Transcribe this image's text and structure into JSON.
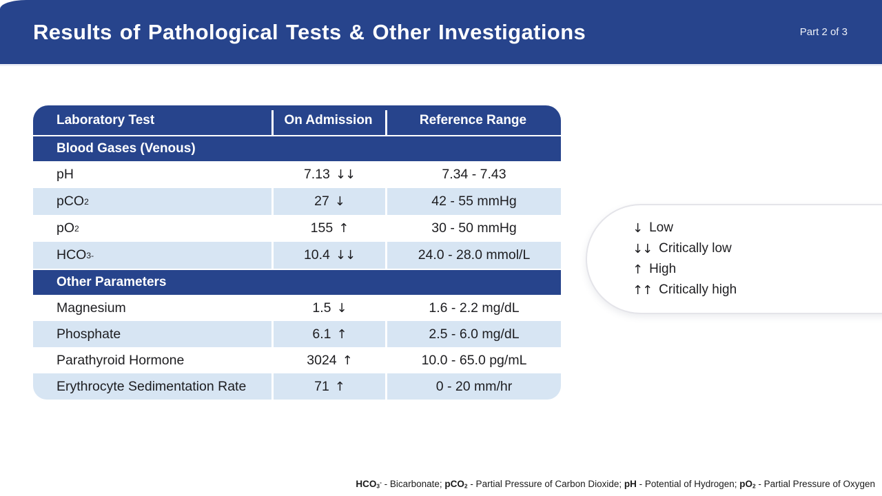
{
  "colors": {
    "banner_blue": "#27448c",
    "row_light_blue": "#d7e5f3",
    "text_dark": "#1d1d20",
    "white": "#ffffff"
  },
  "header": {
    "title": "Results of Pathological Tests & Other Investigations",
    "part_label": "Part 2 of 3"
  },
  "table": {
    "columns": [
      "Laboratory Test",
      "On Admission",
      "Reference Range"
    ],
    "sections": [
      {
        "title": "Blood Gases (Venous)",
        "rows": [
          {
            "name": "pH",
            "name_sub": "",
            "name_sup": "",
            "value": "7.13",
            "flag": "↓↓",
            "range": "7.34 - 7.43"
          },
          {
            "name": "pCO",
            "name_sub": "2",
            "name_sup": "",
            "value": "27",
            "flag": "↓",
            "range": "42 - 55 mmHg"
          },
          {
            "name": "pO",
            "name_sub": "2",
            "name_sup": "",
            "value": "155",
            "flag": "↑",
            "range": "30 - 50 mmHg"
          },
          {
            "name": "HCO",
            "name_sub": "3",
            "name_sup": "-",
            "value": "10.4",
            "flag": "↓↓",
            "range": "24.0 - 28.0 mmol/L"
          }
        ]
      },
      {
        "title": "Other Parameters",
        "rows": [
          {
            "name": "Magnesium",
            "name_sub": "",
            "name_sup": "",
            "value": "1.5",
            "flag": "↓",
            "range": "1.6 - 2.2 mg/dL"
          },
          {
            "name": "Phosphate",
            "name_sub": "",
            "name_sup": "",
            "value": "6.1",
            "flag": "↑",
            "range": "2.5 - 6.0 mg/dL"
          },
          {
            "name": "Parathyroid Hormone",
            "name_sub": "",
            "name_sup": "",
            "value": "3024",
            "flag": "↑",
            "range": "10.0 - 65.0 pg/mL"
          },
          {
            "name": "Erythrocyte Sedimentation Rate",
            "name_sub": "",
            "name_sup": "",
            "value": "71",
            "flag": "↑",
            "range": "0 - 20 mm/hr"
          }
        ]
      }
    ]
  },
  "legend": {
    "items": [
      {
        "symbol": "↓",
        "label": "Low"
      },
      {
        "symbol": "↓↓",
        "label": "Critically low"
      },
      {
        "symbol": "↑",
        "label": "High"
      },
      {
        "symbol": "↑↑",
        "label": "Critically high"
      }
    ]
  },
  "footnote": {
    "items": [
      {
        "abbr": "HCO",
        "abbr_sub": "3",
        "abbr_sup": "-",
        "text": " - Bicarbonate; "
      },
      {
        "abbr": "pCO",
        "abbr_sub": "2",
        "abbr_sup": "",
        "text": " - Partial Pressure of Carbon Dioxide; "
      },
      {
        "abbr": "pH",
        "abbr_sub": "",
        "abbr_sup": "",
        "text": " - Potential of Hydrogen; "
      },
      {
        "abbr": "pO",
        "abbr_sub": "2",
        "abbr_sup": "",
        "text": " - Partial Pressure of Oxygen"
      }
    ]
  }
}
